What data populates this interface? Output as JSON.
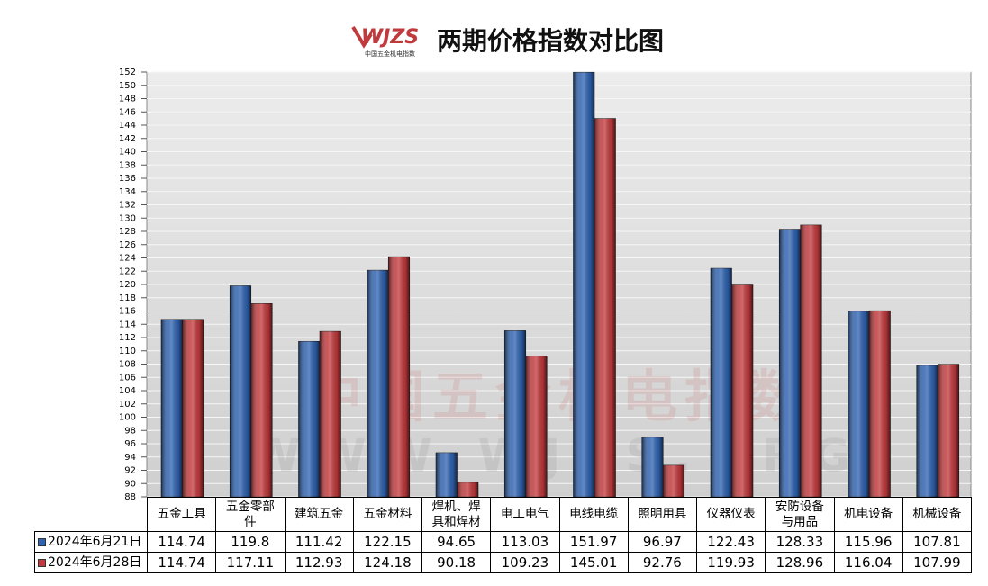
{
  "logo": {
    "mark": "WJZS",
    "caption": "中国五金机电指数"
  },
  "watermark": {
    "text": "中国五金机电指数",
    "url": "WWW.WJZS.ORG"
  },
  "chart_data": {
    "type": "bar",
    "title": "两期价格指数对比图",
    "categories": [
      "五金工具",
      "五金零部件",
      "建筑五金",
      "五金材料",
      "焊机、焊具和焊材",
      "电工电气",
      "电线电缆",
      "照明用具",
      "仪器仪表",
      "安防设备与用品",
      "机电设备",
      "机械设备"
    ],
    "series": [
      {
        "name": "2024年6月21日",
        "color": "#2f62b0",
        "values": [
          114.74,
          119.8,
          111.42,
          122.15,
          94.65,
          113.03,
          151.97,
          96.97,
          122.43,
          128.33,
          115.96,
          107.81
        ]
      },
      {
        "name": "2024年6月28日",
        "color": "#c0393c",
        "values": [
          114.74,
          117.11,
          112.93,
          124.18,
          90.18,
          109.23,
          145.01,
          92.76,
          119.93,
          128.96,
          116.04,
          107.99
        ]
      }
    ],
    "ylim": [
      88,
      152
    ],
    "yticks": [
      88,
      90,
      92,
      94,
      96,
      98,
      100,
      102,
      104,
      106,
      108,
      110,
      112,
      114,
      116,
      118,
      120,
      122,
      124,
      126,
      128,
      130,
      132,
      134,
      136,
      138,
      140,
      142,
      144,
      146,
      148,
      150,
      152
    ],
    "grid": true
  }
}
